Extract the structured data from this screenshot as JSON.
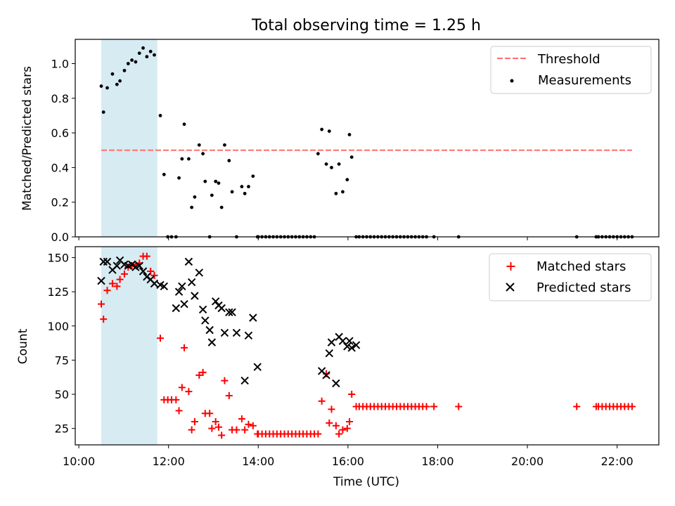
{
  "title": "Total observing time = 1.25 h",
  "colors": {
    "threshold": "#ff6f6f",
    "measurements": "#000000",
    "matched": "#ff0000",
    "predicted": "#000000",
    "shade": "#add8e6"
  },
  "x_axis": {
    "label": "Time (UTC)",
    "range_hours": [
      9.92,
      22.93
    ],
    "ticks": [
      {
        "value": 10,
        "label": "10:00"
      },
      {
        "value": 12,
        "label": "12:00"
      },
      {
        "value": 14,
        "label": "14:00"
      },
      {
        "value": 16,
        "label": "16:00"
      },
      {
        "value": 18,
        "label": "18:00"
      },
      {
        "value": 20,
        "label": "20:00"
      },
      {
        "value": 22,
        "label": "22:00"
      }
    ]
  },
  "chart_data": [
    {
      "type": "scatter",
      "ylabel": "Matched/Predicted stars",
      "ylim": [
        0,
        1.14
      ],
      "yticks": [
        {
          "value": 0,
          "label": "0.0"
        },
        {
          "value": 0.2,
          "label": "0.2"
        },
        {
          "value": 0.4,
          "label": "0.4"
        },
        {
          "value": 0.6,
          "label": "0.6"
        },
        {
          "value": 0.8,
          "label": "0.8"
        },
        {
          "value": 1.0,
          "label": "1.0"
        }
      ],
      "shaded_interval": [
        "10:30",
        "11:45"
      ],
      "legend": {
        "position": "upper right",
        "entries": [
          "Threshold",
          "Measurements"
        ]
      },
      "threshold": {
        "name": "Threshold",
        "value": 0.5,
        "x_range": [
          "10:30",
          "22:20"
        ]
      },
      "series": [
        {
          "name": "Measurements",
          "x": [
            "10:30",
            "10:33",
            "10:38",
            "10:45",
            "10:51",
            "10:55",
            "11:01",
            "11:06",
            "11:11",
            "11:16",
            "11:21",
            "11:26",
            "11:31",
            "11:36",
            "11:41",
            "11:49",
            "11:54",
            "11:59",
            "12:04",
            "12:10",
            "12:14",
            "12:18",
            "12:21",
            "12:27",
            "12:31",
            "12:35",
            "12:41",
            "12:46",
            "12:49",
            "12:55",
            "12:58",
            "13:03",
            "13:07",
            "13:11",
            "13:15",
            "13:21",
            "13:25",
            "13:31",
            "13:38",
            "13:42",
            "13:47",
            "13:53",
            "13:59",
            "14:00",
            "14:05",
            "14:10",
            "14:15",
            "14:20",
            "14:25",
            "14:30",
            "14:35",
            "14:40",
            "14:45",
            "14:50",
            "14:55",
            "15:00",
            "15:05",
            "15:10",
            "15:15",
            "15:20",
            "15:25",
            "15:31",
            "15:35",
            "15:38",
            "15:44",
            "15:48",
            "15:53",
            "15:59",
            "16:02",
            "16:05",
            "16:11",
            "16:15",
            "16:20",
            "16:25",
            "16:30",
            "16:35",
            "16:40",
            "16:45",
            "16:50",
            "16:55",
            "17:00",
            "17:05",
            "17:10",
            "17:15",
            "17:20",
            "17:25",
            "17:30",
            "17:35",
            "17:40",
            "17:45",
            "17:55",
            "18:28",
            "21:06",
            "21:32",
            "21:35",
            "21:40",
            "21:45",
            "21:50",
            "21:55",
            "22:00",
            "22:05",
            "22:10",
            "22:15",
            "22:20"
          ],
          "y": [
            0.87,
            0.72,
            0.86,
            0.94,
            0.88,
            0.9,
            0.96,
            1.0,
            1.02,
            1.01,
            1.06,
            1.09,
            1.04,
            1.07,
            1.05,
            0.7,
            0.36,
            0,
            0,
            0,
            0.34,
            0.45,
            0.65,
            0.45,
            0.17,
            0.23,
            0.53,
            0.48,
            0.32,
            0,
            0.24,
            0.32,
            0.31,
            0.17,
            0.53,
            0.44,
            0.26,
            0,
            0.29,
            0.25,
            0.29,
            0.35,
            0,
            0,
            0,
            0,
            0,
            0,
            0,
            0,
            0,
            0,
            0,
            0,
            0,
            0,
            0,
            0,
            0,
            0.48,
            0.62,
            0.42,
            0.61,
            0.4,
            0.25,
            0.42,
            0.26,
            0.33,
            0.59,
            0.46,
            0,
            0,
            0,
            0,
            0,
            0,
            0,
            0,
            0,
            0,
            0,
            0,
            0,
            0,
            0,
            0,
            0,
            0,
            0,
            0,
            0,
            0,
            0,
            0,
            0,
            0,
            0,
            0,
            0,
            0,
            0,
            0,
            0,
            0
          ]
        }
      ]
    },
    {
      "type": "scatter",
      "xlabel": "Time (UTC)",
      "ylabel": "Count",
      "ylim": [
        13,
        158
      ],
      "yticks": [
        {
          "value": 25,
          "label": "25"
        },
        {
          "value": 50,
          "label": "50"
        },
        {
          "value": 75,
          "label": "75"
        },
        {
          "value": 100,
          "label": "100"
        },
        {
          "value": 125,
          "label": "125"
        },
        {
          "value": 150,
          "label": "150"
        }
      ],
      "shaded_interval": [
        "10:30",
        "11:45"
      ],
      "legend": {
        "position": "upper right",
        "entries": [
          "Matched stars",
          "Predicted stars"
        ]
      },
      "series": [
        {
          "name": "Matched stars",
          "marker": "+",
          "x": [
            "10:30",
            "10:33",
            "10:38",
            "10:45",
            "10:51",
            "10:55",
            "11:01",
            "11:06",
            "11:11",
            "11:16",
            "11:21",
            "11:26",
            "11:31",
            "11:36",
            "11:41",
            "11:49",
            "11:54",
            "11:59",
            "12:04",
            "12:10",
            "12:14",
            "12:18",
            "12:21",
            "12:27",
            "12:31",
            "12:35",
            "12:41",
            "12:46",
            "12:49",
            "12:55",
            "12:58",
            "13:03",
            "13:07",
            "13:11",
            "13:15",
            "13:21",
            "13:25",
            "13:31",
            "13:38",
            "13:42",
            "13:47",
            "13:53",
            "13:59",
            "14:00",
            "14:05",
            "14:10",
            "14:15",
            "14:20",
            "14:25",
            "14:30",
            "14:35",
            "14:40",
            "14:45",
            "14:50",
            "14:55",
            "15:00",
            "15:05",
            "15:10",
            "15:15",
            "15:20",
            "15:25",
            "15:31",
            "15:35",
            "15:38",
            "15:44",
            "15:48",
            "15:53",
            "15:59",
            "16:02",
            "16:05",
            "16:11",
            "16:15",
            "16:20",
            "16:25",
            "16:30",
            "16:35",
            "16:40",
            "16:45",
            "16:50",
            "16:55",
            "17:00",
            "17:05",
            "17:10",
            "17:15",
            "17:20",
            "17:25",
            "17:30",
            "17:35",
            "17:40",
            "17:45",
            "17:55",
            "18:28",
            "21:06",
            "21:32",
            "21:35",
            "21:40",
            "21:45",
            "21:50",
            "21:55",
            "22:00",
            "22:05",
            "22:10",
            "22:15",
            "22:20"
          ],
          "y": [
            116,
            105,
            126,
            131,
            129,
            134,
            138,
            143,
            144,
            145,
            146,
            151,
            151,
            140,
            137,
            91,
            46,
            46,
            46,
            46,
            38,
            55,
            84,
            52,
            24,
            30,
            64,
            66,
            36,
            36,
            25,
            30,
            26,
            20,
            60,
            49,
            24,
            24,
            32,
            24,
            28,
            27,
            21,
            21,
            21,
            21,
            21,
            21,
            21,
            21,
            21,
            21,
            21,
            21,
            21,
            21,
            21,
            21,
            21,
            21,
            45,
            65,
            29,
            39,
            27,
            21,
            24,
            25,
            30,
            50,
            41,
            41,
            41,
            41,
            41,
            41,
            41,
            41,
            41,
            41,
            41,
            41,
            41,
            41,
            41,
            41,
            41,
            41,
            41,
            41,
            41,
            41,
            41,
            41,
            41,
            41,
            41,
            41,
            41,
            41,
            41,
            41,
            41,
            41
          ]
        },
        {
          "name": "Predicted stars",
          "marker": "x",
          "x": [
            "10:30",
            "10:33",
            "10:38",
            "10:45",
            "10:51",
            "10:55",
            "11:01",
            "11:06",
            "11:11",
            "11:16",
            "11:21",
            "11:26",
            "11:31",
            "11:36",
            "11:41",
            "11:49",
            "11:54",
            "12:10",
            "12:14",
            "12:18",
            "12:21",
            "12:27",
            "12:31",
            "12:35",
            "12:41",
            "12:46",
            "12:49",
            "12:55",
            "12:58",
            "13:03",
            "13:07",
            "13:11",
            "13:15",
            "13:21",
            "13:25",
            "13:31",
            "13:42",
            "13:47",
            "13:53",
            "13:59",
            "15:25",
            "15:31",
            "15:35",
            "15:38",
            "15:44",
            "15:48",
            "15:53",
            "15:59",
            "16:02",
            "16:05",
            "16:11"
          ],
          "y": [
            133,
            147,
            147,
            141,
            144,
            148,
            145,
            144,
            145,
            143,
            144,
            140,
            136,
            134,
            131,
            130,
            129,
            113,
            125,
            129,
            116,
            147,
            132,
            122,
            139,
            112,
            104,
            97,
            88,
            118,
            115,
            113,
            95,
            110,
            110,
            95,
            60,
            93,
            106,
            70,
            67,
            64,
            80,
            88,
            58,
            92,
            89,
            85,
            89,
            84,
            86
          ]
        }
      ]
    }
  ]
}
